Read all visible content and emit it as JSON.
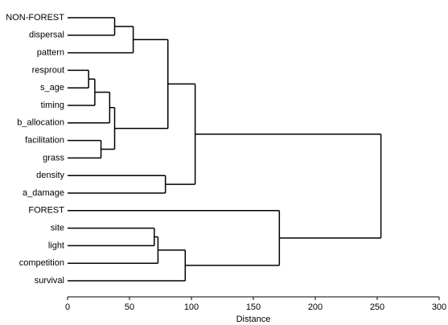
{
  "chart_data": {
    "type": "dendrogram",
    "x_label": "Distance",
    "leaves": [
      "NON-FOREST",
      "dispersal",
      "pattern",
      "resprout",
      "s_age",
      "timing",
      "b_allocation",
      "facilitation",
      "grass",
      "density",
      "a_damage",
      "FOREST",
      "site",
      "light",
      "competition",
      "survival"
    ],
    "merges": [
      {
        "children": [
          0,
          1
        ],
        "height": 38
      },
      {
        "children": [
          16,
          2
        ],
        "height": 53
      },
      {
        "children": [
          3,
          4
        ],
        "height": 17
      },
      {
        "children": [
          18,
          5
        ],
        "height": 22
      },
      {
        "children": [
          19,
          6
        ],
        "height": 34
      },
      {
        "children": [
          7,
          8
        ],
        "height": 27
      },
      {
        "children": [
          20,
          21
        ],
        "height": 38
      },
      {
        "children": [
          17,
          22
        ],
        "height": 81
      },
      {
        "children": [
          9,
          10
        ],
        "height": 79
      },
      {
        "children": [
          23,
          24
        ],
        "height": 103
      },
      {
        "children": [
          12,
          13
        ],
        "height": 70
      },
      {
        "children": [
          26,
          14
        ],
        "height": 73
      },
      {
        "children": [
          27,
          15
        ],
        "height": 95
      },
      {
        "children": [
          11,
          28
        ],
        "height": 171
      },
      {
        "children": [
          25,
          29
        ],
        "height": 253
      }
    ],
    "xlim": [
      0,
      300
    ],
    "xticks": [
      0,
      50,
      100,
      150,
      200,
      250,
      300
    ],
    "color": "#000000"
  }
}
